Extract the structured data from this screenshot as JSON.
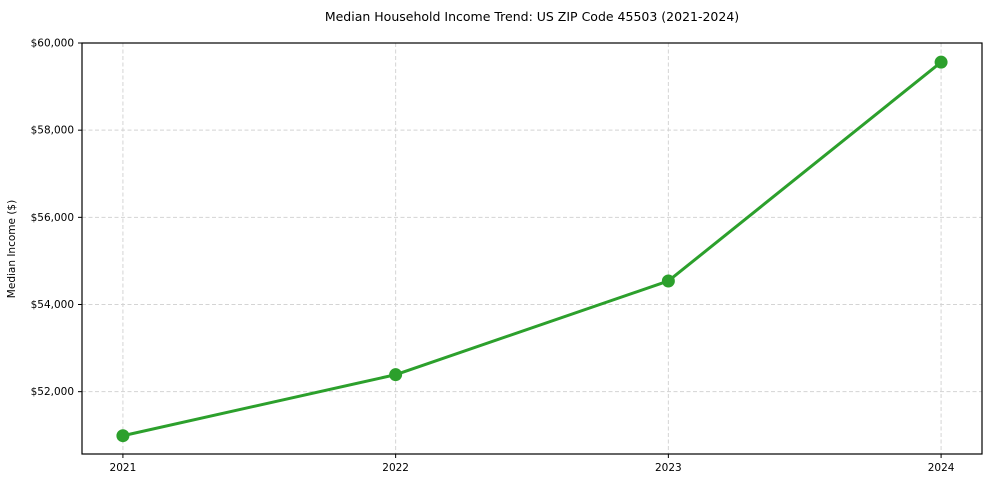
{
  "figure": {
    "title": "Median Household Income Trend: US ZIP Code 45503 (2021-2024)"
  },
  "chart_data": {
    "type": "line",
    "title": "Median Household Income Trend: US ZIP Code 45503 (2021-2024)",
    "categories": [
      "2021",
      "2022",
      "2023",
      "2024"
    ],
    "series": [
      {
        "name": "Median Household Income",
        "values": [
          50990,
          52390,
          54540,
          59560
        ],
        "color": "#2ca02c",
        "marker": "circle",
        "line_width": 3,
        "marker_radius": 6
      }
    ],
    "xlabel": "",
    "ylabel": "Median Income ($)",
    "ylim": [
      50570,
      60000
    ],
    "yticks": [
      52000,
      54000,
      56000,
      58000,
      60000
    ],
    "ytick_prefix": "$",
    "grid": true,
    "grid_style": "dashed",
    "grid_color": "#d4d4d4",
    "spine_color": "#000000",
    "background_color": "#ffffff",
    "legend": "none"
  }
}
